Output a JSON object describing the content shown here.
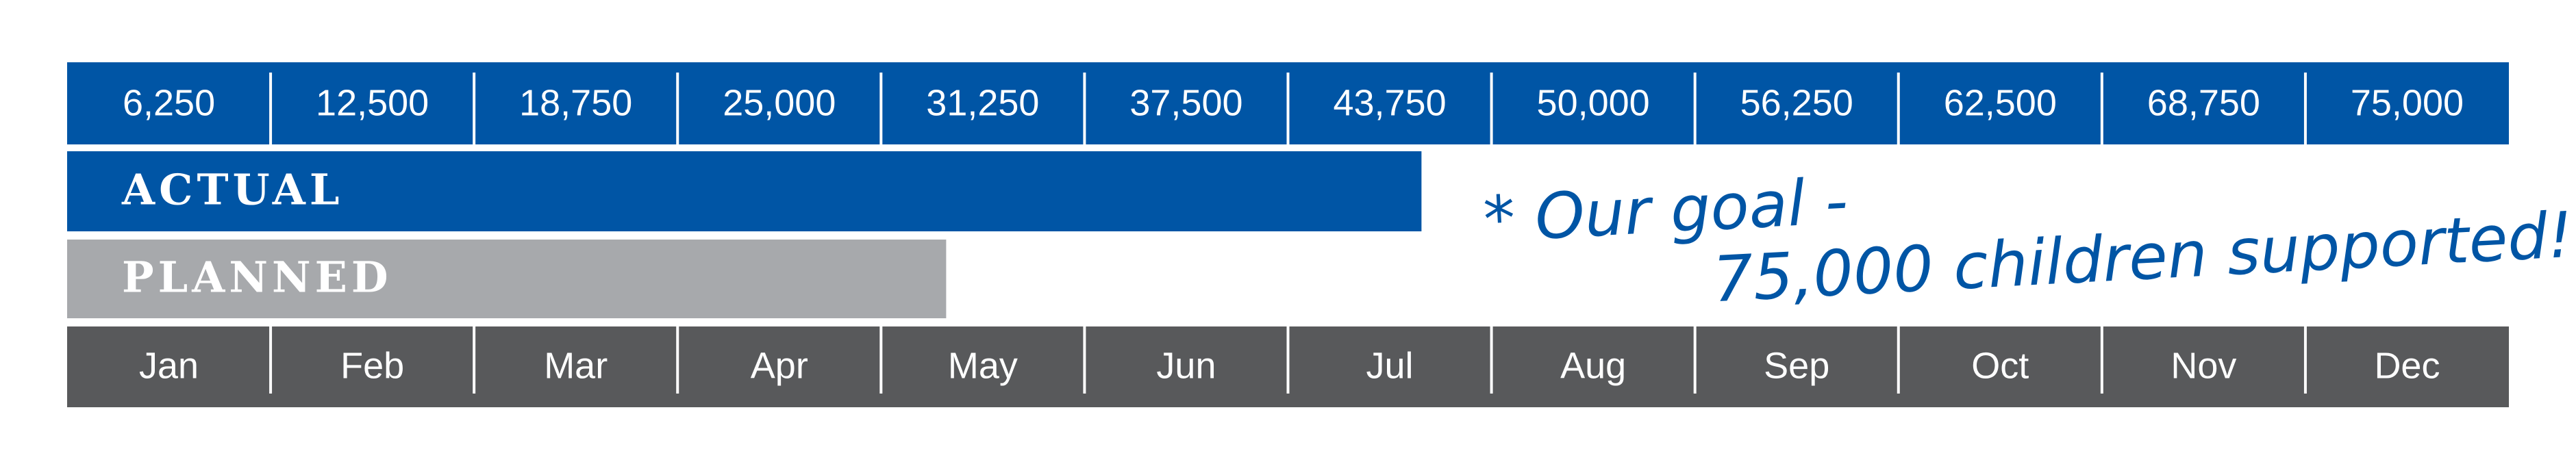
{
  "chart_data": {
    "type": "progress-bar",
    "xlim": [
      0,
      75000
    ],
    "xticks": [
      {
        "value": 6250,
        "label": "6,250"
      },
      {
        "value": 12500,
        "label": "12,500"
      },
      {
        "value": 18750,
        "label": "18,750"
      },
      {
        "value": 25000,
        "label": "25,000"
      },
      {
        "value": 31250,
        "label": "31,250"
      },
      {
        "value": 37500,
        "label": "37,500"
      },
      {
        "value": 43750,
        "label": "43,750"
      },
      {
        "value": 50000,
        "label": "50,000"
      },
      {
        "value": 56250,
        "label": "56,250"
      },
      {
        "value": 62500,
        "label": "62,500"
      },
      {
        "value": 68750,
        "label": "68,750"
      },
      {
        "value": 75000,
        "label": "75,000"
      }
    ],
    "months": [
      "Jan",
      "Feb",
      "Mar",
      "Apr",
      "May",
      "Jun",
      "Jul",
      "Aug",
      "Sep",
      "Oct",
      "Nov",
      "Dec"
    ],
    "series": [
      {
        "name": "ACTUAL",
        "color": "#0055a5",
        "values": [
          41600
        ]
      },
      {
        "name": "PLANNED",
        "color": "#a7a9ac",
        "values": [
          27000
        ]
      }
    ],
    "annotations": [
      "* Our goal -",
      "75,000 children supported!"
    ]
  }
}
